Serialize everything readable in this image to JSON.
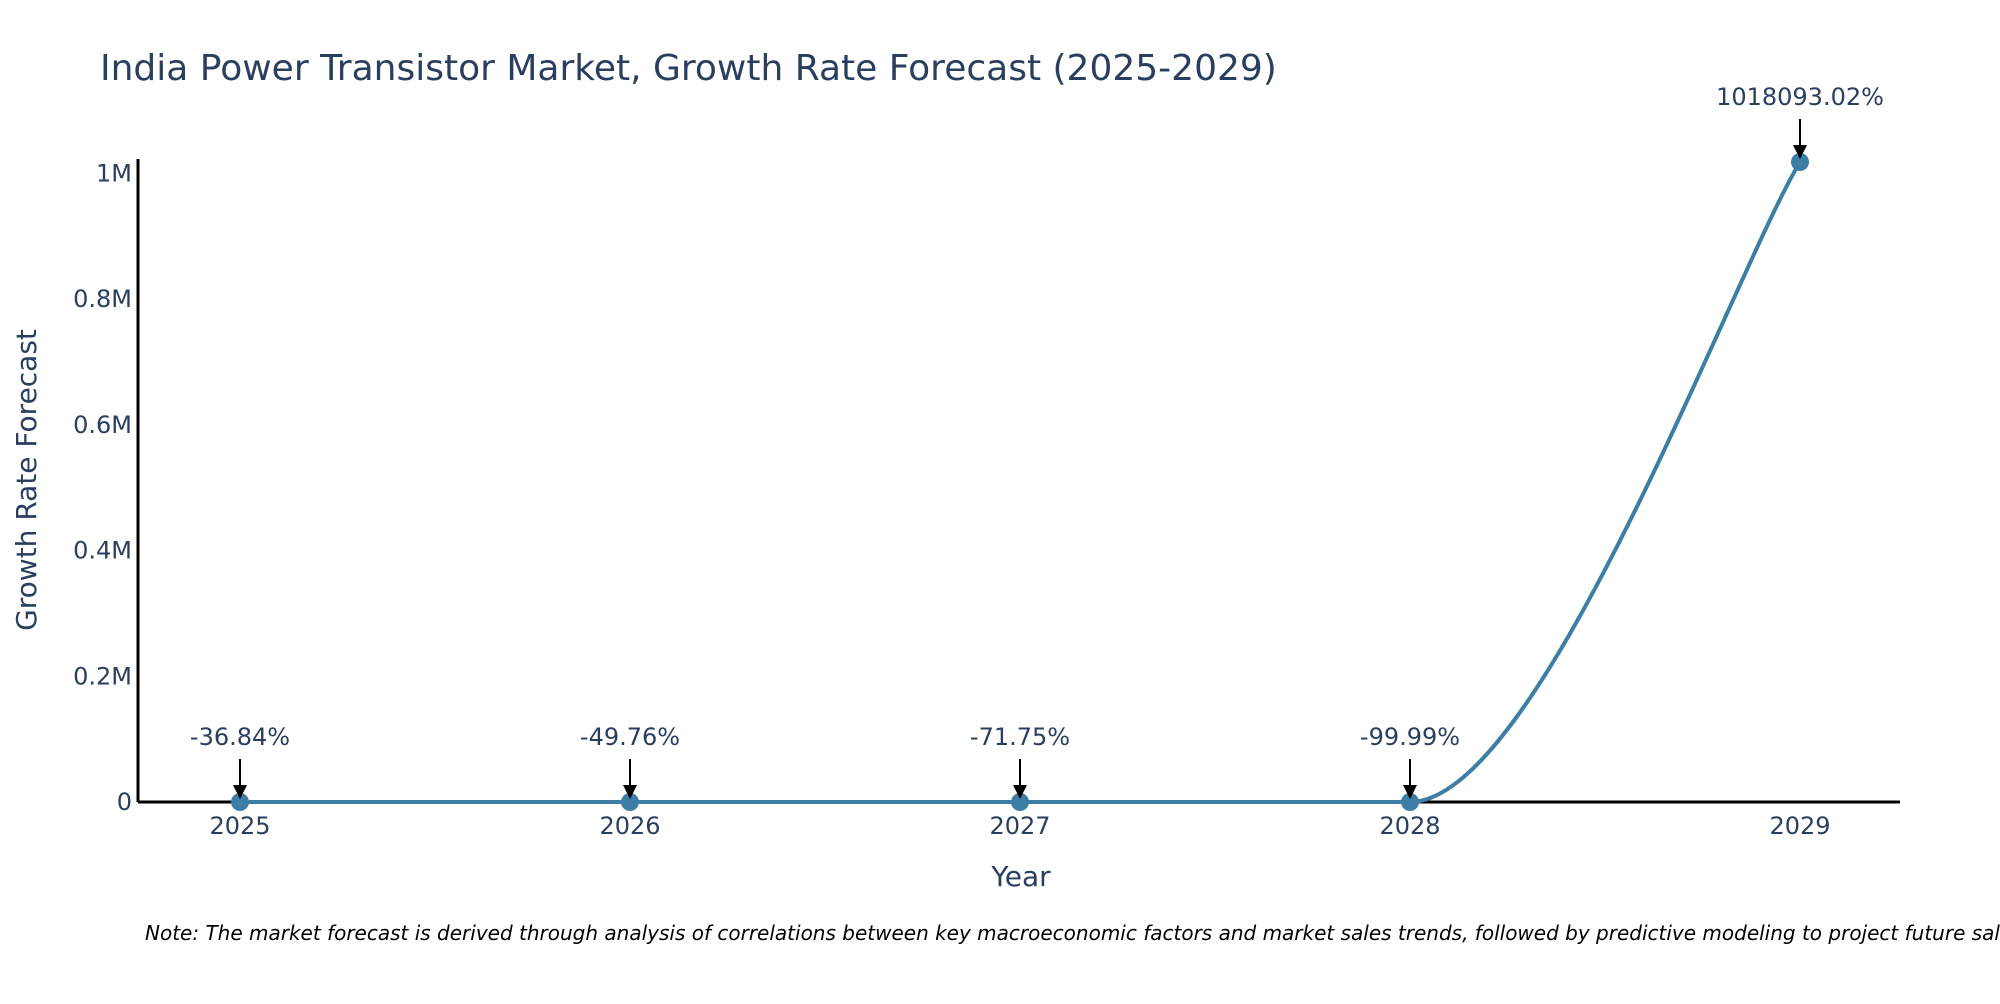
{
  "chart_data": {
    "type": "line",
    "title": "India Power Transistor Market, Growth Rate Forecast (2025-2029)",
    "xlabel": "Year",
    "ylabel": "Growth Rate Forecast",
    "categories": [
      "2025",
      "2026",
      "2027",
      "2028",
      "2029"
    ],
    "x": [
      2025,
      2026,
      2027,
      2028,
      2029
    ],
    "values": [
      -36.84,
      -49.76,
      -71.75,
      -99.99,
      1018093.02
    ],
    "annotations": [
      "-36.84%",
      "-49.76%",
      "-71.75%",
      "-99.99%",
      "1018093.02%"
    ],
    "ylim": [
      0,
      1018093.02
    ],
    "yticks": [
      0,
      200000,
      400000,
      600000,
      800000,
      1000000
    ],
    "ytick_labels": [
      "0",
      "0.2M",
      "0.4M",
      "0.6M",
      "0.8M",
      "1M"
    ],
    "grid": false,
    "line_color": "#3d7ea6",
    "note": "Note: The market forecast is derived through analysis of correlations between key macroeconomic factors and market sales trends, followed by predictive modeling to project future sales."
  }
}
